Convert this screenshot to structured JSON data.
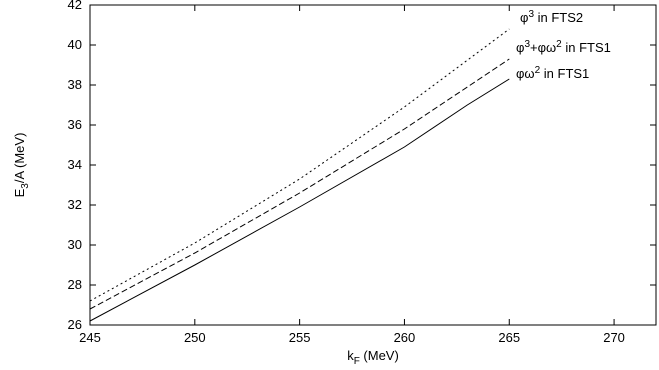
{
  "chart_data": {
    "type": "line",
    "title": "",
    "xlabel": {
      "main": "k",
      "sub": "F",
      "rest": " (MeV)"
    },
    "ylabel": {
      "main": "E",
      "sub": "3",
      "rest": "/A (MeV)"
    },
    "xlim": [
      245,
      272
    ],
    "ylim": [
      26,
      42
    ],
    "xticks": [
      245,
      250,
      255,
      260,
      265,
      270
    ],
    "yticks": [
      26,
      28,
      30,
      32,
      34,
      36,
      38,
      40,
      42
    ],
    "grid": false,
    "legend_placement": "annotations at line ends (top-right)",
    "series": [
      {
        "label_parts": [
          "φ",
          "3",
          " in FTS2"
        ],
        "style": "dotted",
        "x": [
          245,
          250,
          255,
          260,
          265
        ],
        "y": [
          27.2,
          30.1,
          33.3,
          36.9,
          40.8
        ]
      },
      {
        "label_parts": [
          "φ",
          "3",
          "+φω",
          "2",
          " in FTS1"
        ],
        "style": "dashed",
        "x": [
          245,
          250,
          255,
          260,
          265
        ],
        "y": [
          26.8,
          29.6,
          32.6,
          35.8,
          39.3
        ]
      },
      {
        "label_parts": [
          "φω",
          "2",
          " in FTS1"
        ],
        "style": "solid",
        "x": [
          245,
          250,
          255,
          260,
          263,
          265
        ],
        "y": [
          26.2,
          29.0,
          31.9,
          34.9,
          37.0,
          38.3
        ]
      }
    ]
  }
}
